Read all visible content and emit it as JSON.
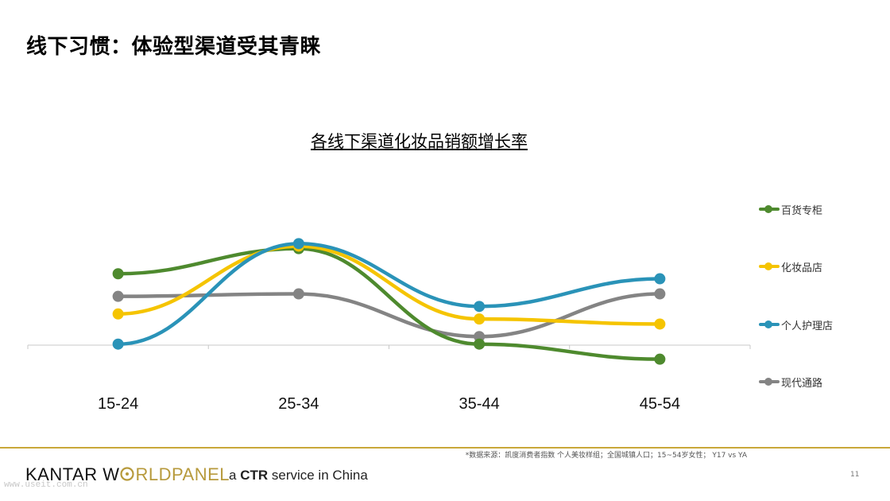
{
  "slide": {
    "title": "线下习惯：体验型渠道受其青睐",
    "page_number": "11"
  },
  "chart_data": {
    "type": "line",
    "title": "各线下渠道化妆品销额增长率",
    "categories": [
      "15-24",
      "25-34",
      "35-44",
      "45-54"
    ],
    "ylim": [
      -8,
      42
    ],
    "y_axis_visible": false,
    "grid": false,
    "legend_position": "right",
    "smooth": true,
    "series": [
      {
        "name": "百货专柜",
        "color": "#4e8a2e",
        "values": [
          28,
          38,
          0,
          -6
        ]
      },
      {
        "name": "化妆品店",
        "color": "#f5c400",
        "values": [
          12,
          39,
          10,
          8
        ]
      },
      {
        "name": "个人护理店",
        "color": "#2a93b8",
        "values": [
          0,
          40,
          15,
          26
        ]
      },
      {
        "name": "现代通路",
        "color": "#848484",
        "values": [
          19,
          20,
          3,
          20
        ]
      }
    ]
  },
  "footer": {
    "source_note": "*数据来源：凯度消费者指数 个人美妆样组；全国城镇人口；15~54岁女性； Y17 vs YA",
    "brand_part1": "KANTAR W",
    "brand_part2": "RLDPANEL",
    "tagline_prefix": "a ",
    "tagline_bold": "CTR",
    "tagline_suffix": " service in China",
    "watermark": "www.useit.com.cn"
  }
}
